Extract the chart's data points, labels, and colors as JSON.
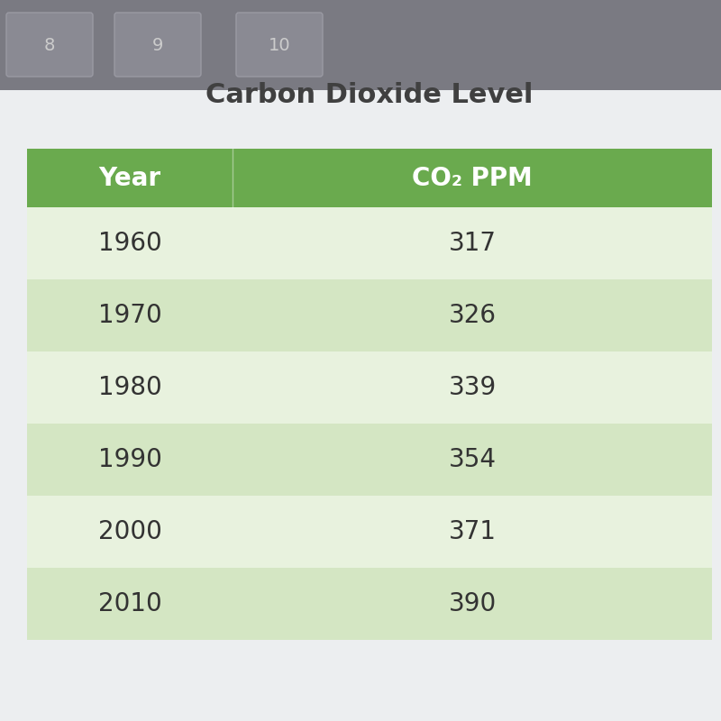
{
  "title": "Carbon Dioxide Level",
  "col1_header": "Year",
  "col2_header": "CO₂ PPM",
  "rows": [
    [
      "1960",
      "317"
    ],
    [
      "1970",
      "326"
    ],
    [
      "1980",
      "339"
    ],
    [
      "1990",
      "354"
    ],
    [
      "2000",
      "371"
    ],
    [
      "2010",
      "390"
    ]
  ],
  "header_bg": "#6aaa4e",
  "header_text": "#ffffff",
  "row_bg_odd": "#d4e6c3",
  "row_bg_even": "#e8f2de",
  "title_color": "#404040",
  "cell_text_color": "#333333",
  "bg_top": "#7a7a82",
  "bg_content": "#eceef0",
  "title_fontsize": 22,
  "header_fontsize": 20,
  "cell_fontsize": 20
}
